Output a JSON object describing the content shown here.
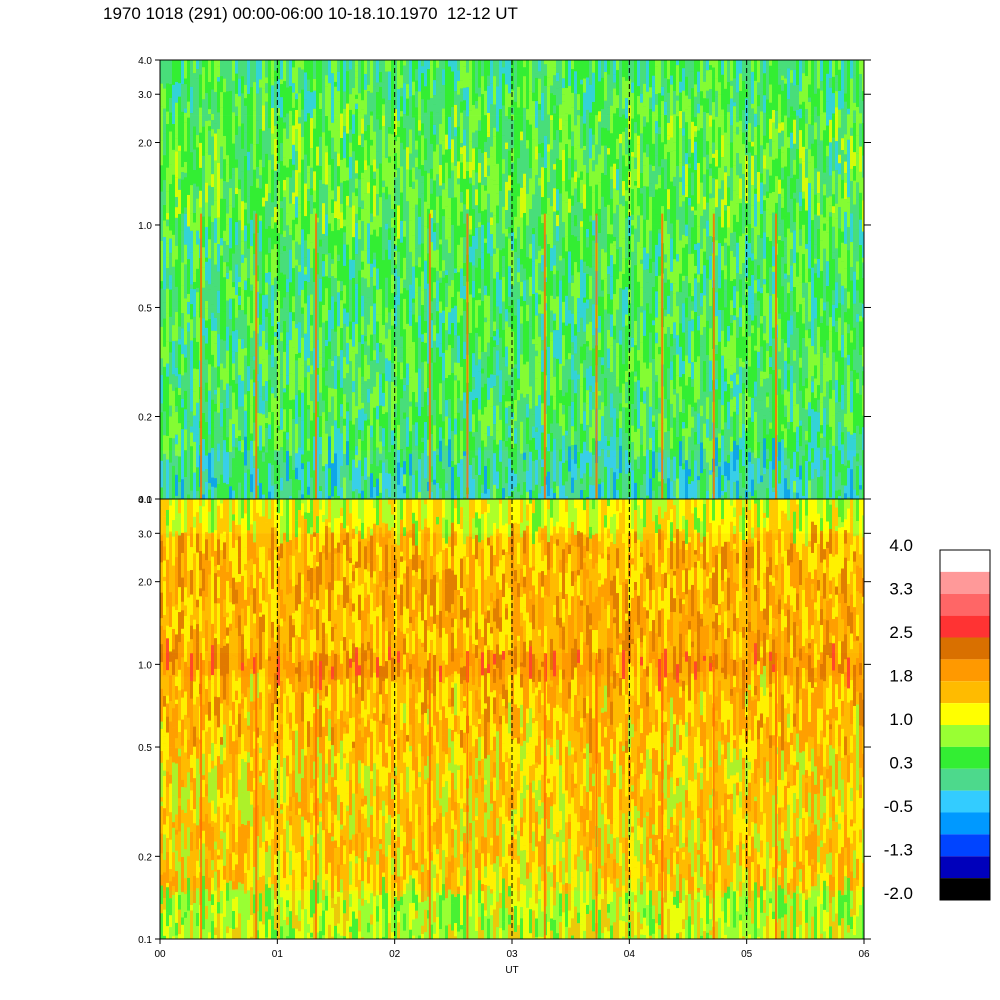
{
  "title": "1970 1018 (291) 00:00-06:00 10-18.10.1970  12-12 UT",
  "chart_data": {
    "type": "heatmap",
    "xlabel": "UT",
    "x_ticks": [
      "00",
      "01",
      "02",
      "03",
      "04",
      "05",
      "06"
    ],
    "x_range": [
      0,
      6
    ],
    "y_scale": "log",
    "y_range": [
      0.1,
      4.0
    ],
    "y_ticks": [
      "0.1",
      "0.2",
      "0.5",
      "1.0",
      "2.0",
      "3.0",
      "4.0"
    ],
    "y_tick_values": [
      0.1,
      0.2,
      0.5,
      1.0,
      2.0,
      3.0,
      4.0
    ],
    "grid": "vertical dashed lines at each hour",
    "panels": [
      {
        "name": "",
        "dominant_level": "0.3 to 1.0 (green)",
        "bands": [
          {
            "y_from": 0.1,
            "y_to": 0.15,
            "value": 0.0
          },
          {
            "y_from": 0.15,
            "y_to": 0.5,
            "value": 0.3
          },
          {
            "y_from": 0.5,
            "y_to": 1.0,
            "value": 0.3
          },
          {
            "y_from": 1.0,
            "y_to": 2.5,
            "value": 0.5
          },
          {
            "y_from": 2.5,
            "y_to": 4.0,
            "value": 0.3
          }
        ]
      },
      {
        "name": "",
        "dominant_level": "1.0 to 1.8 (yellow/orange)",
        "bands": [
          {
            "y_from": 0.1,
            "y_to": 0.15,
            "value": 1.0
          },
          {
            "y_from": 0.15,
            "y_to": 0.5,
            "value": 1.4
          },
          {
            "y_from": 0.5,
            "y_to": 0.9,
            "value": 1.6
          },
          {
            "y_from": 0.9,
            "y_to": 1.1,
            "value": 2.0
          },
          {
            "y_from": 1.1,
            "y_to": 3.0,
            "value": 1.7
          },
          {
            "y_from": 3.0,
            "y_to": 4.0,
            "value": 1.1
          }
        ]
      }
    ],
    "colorbar": {
      "labels": [
        "4.0",
        "3.3",
        "2.5",
        "1.8",
        "1.0",
        "0.3",
        "-0.5",
        "-1.3",
        "-2.0"
      ],
      "colors_top_to_bottom": [
        "#ffffff",
        "#ff9999",
        "#ff6666",
        "#ff3333",
        "#d97000",
        "#ff9900",
        "#ffbb00",
        "#ffff00",
        "#99ff33",
        "#33ee33",
        "#4dd98c",
        "#33ccff",
        "#0099ff",
        "#0044ff",
        "#0000bb",
        "#000000"
      ]
    },
    "spikes_x": [
      0.35,
      1.33,
      2.3,
      3.28,
      4.28,
      5.25,
      2.62,
      3.72,
      4.72,
      0.82
    ]
  }
}
